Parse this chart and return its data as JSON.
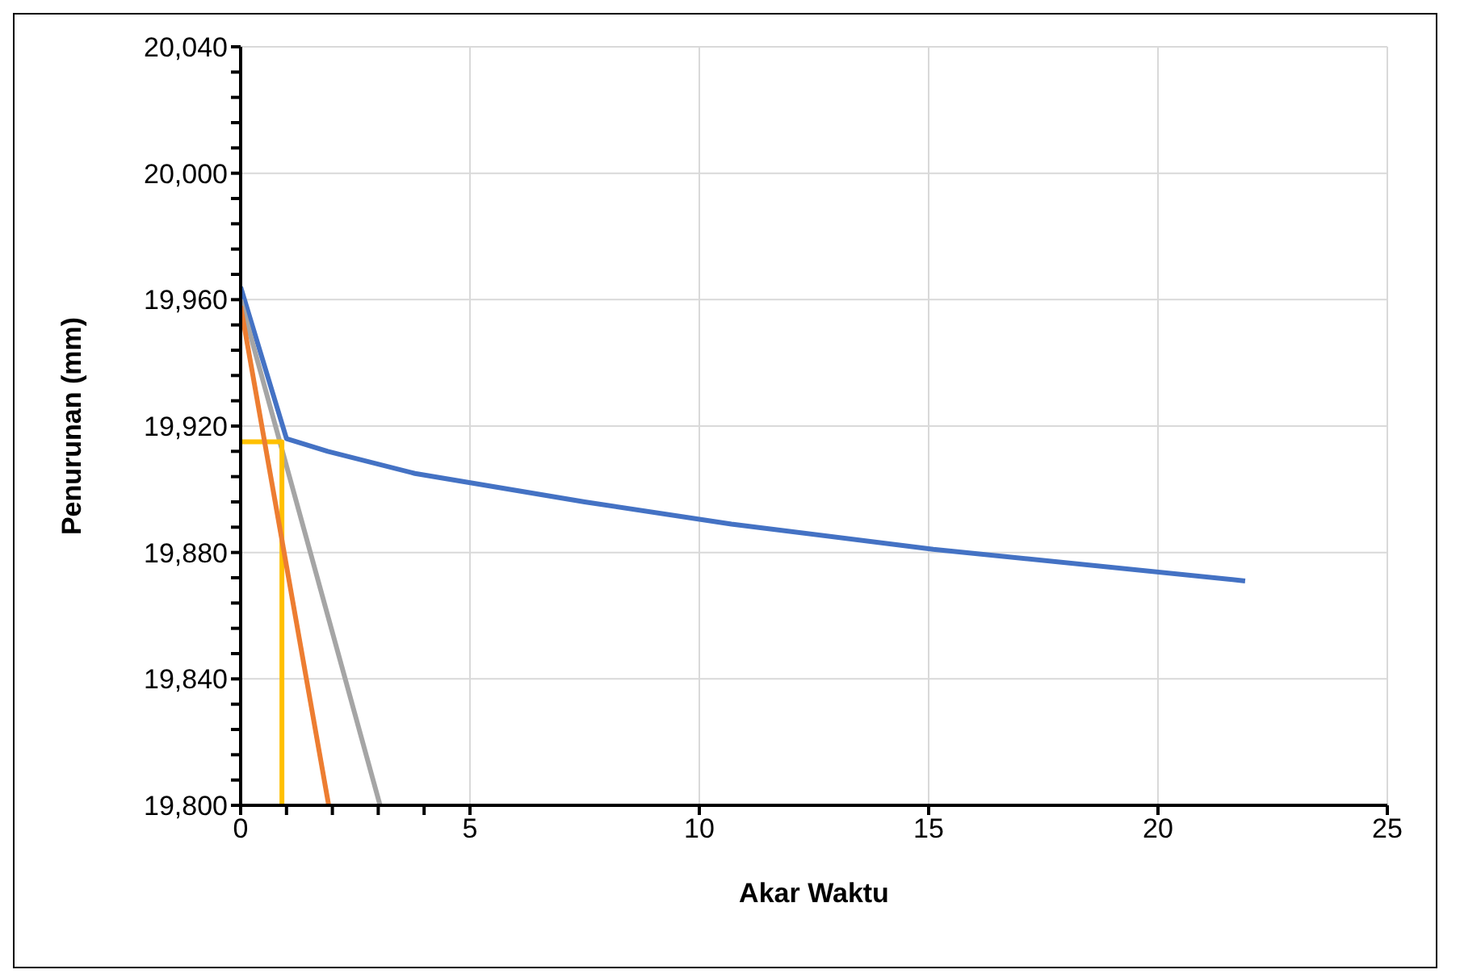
{
  "chart_data": {
    "type": "line",
    "xlabel": "Akar Waktu",
    "ylabel": "Penurunan (mm)",
    "series": [
      {
        "color": "#4472c4",
        "x": [
          0,
          1,
          1.9,
          3.8,
          7.5,
          10.7,
          15.1,
          21.9
        ],
        "values": [
          19964,
          19916,
          19912,
          19905,
          19896,
          19889,
          19881,
          19871
        ]
      },
      {
        "color": "#a5a5a5",
        "x": [
          0,
          3.04
        ],
        "values": [
          19960,
          19800
        ]
      },
      {
        "color": "#ffc000",
        "x": [
          0,
          0.9,
          0.9
        ],
        "values": [
          19915,
          19915,
          19800
        ]
      },
      {
        "color": "#ed7d31",
        "x": [
          0,
          1.92
        ],
        "values": [
          19958,
          19800
        ]
      }
    ],
    "xlim": [
      0,
      25
    ],
    "xticks": [
      0,
      {
        "value": 1,
        "label": null
      },
      {
        "value": 2,
        "label": null
      },
      {
        "value": 3,
        "label": null
      },
      {
        "value": 4,
        "label": null
      },
      5,
      10,
      15,
      20,
      25
    ],
    "ylim": [
      19800,
      20040
    ],
    "yticks": [
      {
        "value": 19800,
        "label": "19,800"
      },
      {
        "value": 19808,
        "label": null
      },
      {
        "value": 19816,
        "label": null
      },
      {
        "value": 19824,
        "label": null
      },
      {
        "value": 19832,
        "label": null
      },
      {
        "value": 19840,
        "label": "19,840"
      },
      {
        "value": 19848,
        "label": null
      },
      {
        "value": 19856,
        "label": null
      },
      {
        "value": 19864,
        "label": null
      },
      {
        "value": 19872,
        "label": null
      },
      {
        "value": 19880,
        "label": "19,880"
      },
      {
        "value": 19888,
        "label": null
      },
      {
        "value": 19896,
        "label": null
      },
      {
        "value": 19904,
        "label": null
      },
      {
        "value": 19912,
        "label": null
      },
      {
        "value": 19920,
        "label": "19,920"
      },
      {
        "value": 19928,
        "label": null
      },
      {
        "value": 19936,
        "label": null
      },
      {
        "value": 19944,
        "label": null
      },
      {
        "value": 19952,
        "label": null
      },
      {
        "value": 19960,
        "label": "19,960"
      },
      {
        "value": 19968,
        "label": null
      },
      {
        "value": 19976,
        "label": null
      },
      {
        "value": 19984,
        "label": null
      },
      {
        "value": 19992,
        "label": null
      },
      {
        "value": 20000,
        "label": "20,000"
      },
      {
        "value": 20008,
        "label": null
      },
      {
        "value": 20016,
        "label": null
      },
      {
        "value": 20024,
        "label": null
      },
      {
        "value": 20032,
        "label": null
      },
      {
        "value": 20040,
        "label": "20,040"
      }
    ],
    "grid": true,
    "marker": "none",
    "line_style": "solid"
  }
}
